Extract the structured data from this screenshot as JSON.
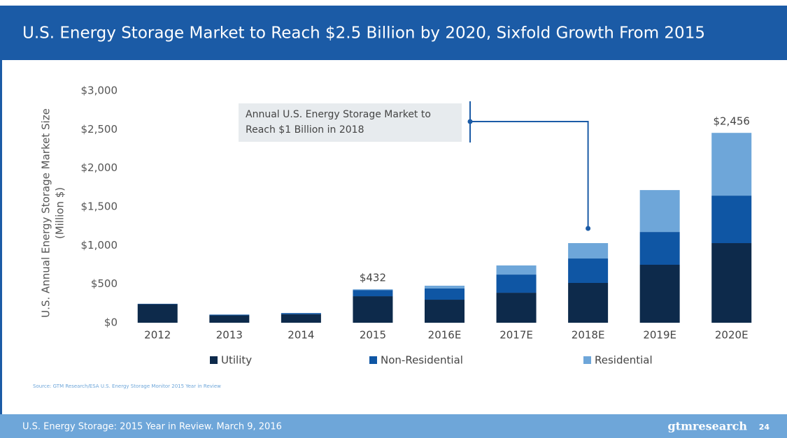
{
  "header": {
    "title": "U.S. Energy Storage Market to Reach $2.5 Billion by 2020, Sixfold Growth From 2015"
  },
  "chart_data": {
    "type": "stacked_bar",
    "ylabel": [
      "U.S. Annual Energy Storage Market Size",
      "(Million $)"
    ],
    "categories": [
      "2012",
      "2013",
      "2014",
      "2015",
      "2016E",
      "2017E",
      "2018E",
      "2019E",
      "2020E"
    ],
    "series": [
      {
        "name": "Utility",
        "color": "#0d2a4b",
        "values": [
          240,
          95,
          110,
          343,
          298,
          388,
          515,
          750,
          1030
        ]
      },
      {
        "name": "Non-Residential",
        "color": "#0f56a4",
        "values": [
          5,
          10,
          15,
          80,
          145,
          235,
          316,
          424,
          614
        ]
      },
      {
        "name": "Residential",
        "color": "#6ea6d9",
        "values": [
          0,
          0,
          0,
          9,
          36,
          118,
          199,
          542,
          812
        ]
      }
    ],
    "ylim": [
      0,
      3000
    ],
    "yticks": [
      {
        "value": 0,
        "label": "$0"
      },
      {
        "value": 500,
        "label": "$500"
      },
      {
        "value": 1000,
        "label": "$1,000"
      },
      {
        "value": 1500,
        "label": "$1,500"
      },
      {
        "value": 2000,
        "label": "$2,000"
      },
      {
        "value": 2500,
        "label": "$2,500"
      },
      {
        "value": 3000,
        "label": "$3,000"
      }
    ],
    "total_labels": [
      {
        "category": "2015",
        "value": 432,
        "label": "$432"
      },
      {
        "category": "2020E",
        "value": 2456,
        "label": "$2,456"
      }
    ],
    "callout": {
      "category": "2018E",
      "lines": [
        "Annual U.S. Energy Storage Market to",
        "Reach $1 Billion in 2018"
      ]
    },
    "grid": false
  },
  "source": "Source: GTM Research/ESA U.S. Energy Storage Monitor 2015 Year in Review",
  "footer": {
    "text": "U.S. Energy Storage: 2015 Year in Review. March 9, 2016",
    "brand": "gtmresearch",
    "page": "24"
  }
}
